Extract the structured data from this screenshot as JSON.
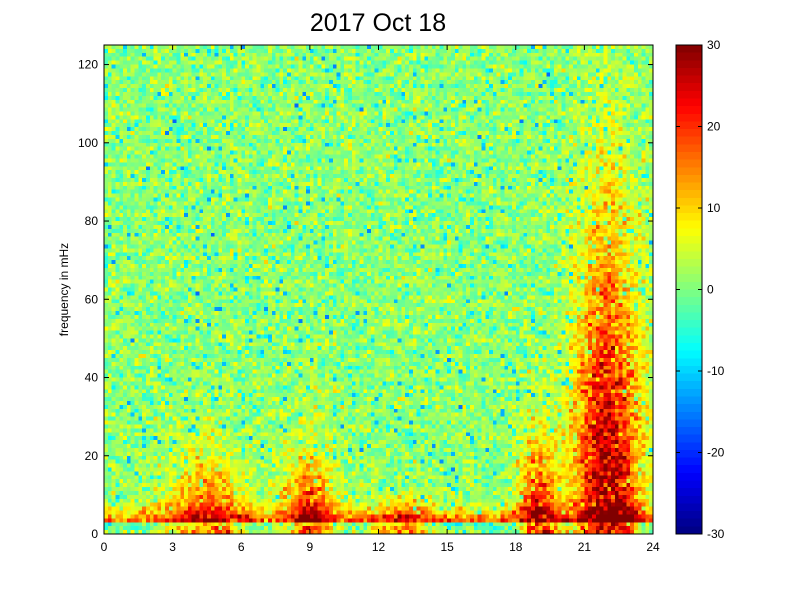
{
  "chart_data": {
    "type": "heatmap",
    "title": "2017 Oct 18",
    "xlabel": "",
    "ylabel": "frequency in mHz",
    "xlim": [
      0,
      24
    ],
    "ylim": [
      0,
      125
    ],
    "x_ticks": [
      "0",
      "3",
      "6",
      "9",
      "12",
      "15",
      "18",
      "21",
      "24"
    ],
    "y_ticks": [
      "0",
      "20",
      "40",
      "60",
      "80",
      "100",
      "120"
    ],
    "colorbar": {
      "range": [
        -30,
        30
      ],
      "ticks": [
        "30",
        "20",
        "10",
        "0",
        "-10",
        "-20",
        "-30"
      ],
      "colormap": "jet"
    },
    "grid": false,
    "grid_size": {
      "time_bins": 144,
      "freq_bins": 125
    },
    "features": [
      {
        "time_start": 0,
        "time_end": 24,
        "freq_max": 3,
        "level": -22
      },
      {
        "time_start": 0,
        "time_end": 24,
        "freq_max": 8,
        "level": 22
      },
      {
        "time_center": 4.5,
        "time_width": 2.5,
        "freq_max": 30,
        "level": 16
      },
      {
        "time_center": 9,
        "time_width": 1.5,
        "freq_max": 30,
        "level": 20
      },
      {
        "time_center": 13,
        "time_width": 2,
        "freq_max": 12,
        "level": 14
      },
      {
        "time_center": 19,
        "time_width": 1.2,
        "freq_max": 35,
        "level": 22
      },
      {
        "time_center": 22,
        "time_width": 2,
        "freq_max": 110,
        "level": 28
      }
    ]
  }
}
